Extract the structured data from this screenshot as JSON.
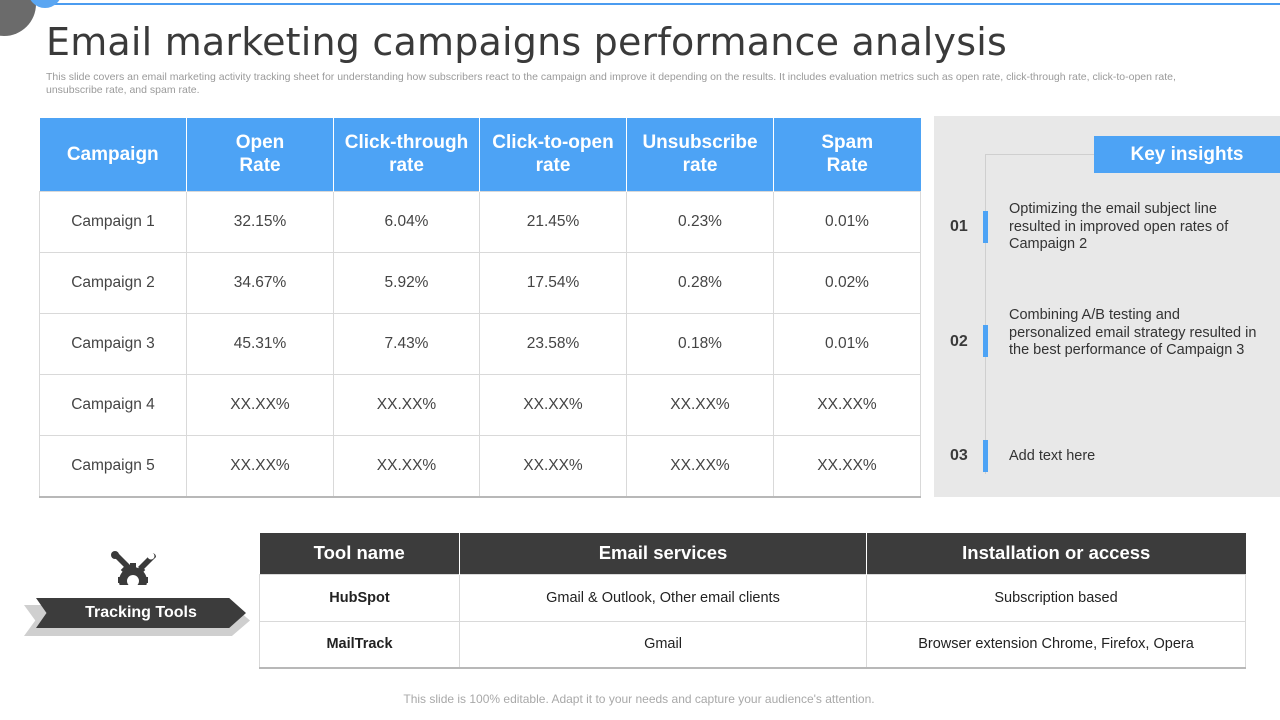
{
  "title": "Email marketing campaigns performance analysis",
  "subtitle": "This slide covers an email marketing activity tracking sheet for understanding how subscribers react to the campaign and improve it depending on the results. It includes evaluation metrics such as open rate, click-through rate, click-to-open rate, unsubscribe rate, and spam rate.",
  "campaign_table": {
    "headers": [
      "Campaign",
      "Open Rate",
      "Click-through rate",
      "Click-to-open rate",
      "Unsubscribe rate",
      "Spam Rate"
    ],
    "rows": [
      [
        "Campaign 1",
        "32.15%",
        "6.04%",
        "21.45%",
        "0.23%",
        "0.01%"
      ],
      [
        "Campaign 2",
        "34.67%",
        "5.92%",
        "17.54%",
        "0.28%",
        "0.02%"
      ],
      [
        "Campaign 3",
        "45.31%",
        "7.43%",
        "23.58%",
        "0.18%",
        "0.01%"
      ],
      [
        "Campaign 4",
        "XX.XX%",
        "XX.XX%",
        "XX.XX%",
        "XX.XX%",
        "XX.XX%"
      ],
      [
        "Campaign 5",
        "XX.XX%",
        "XX.XX%",
        "XX.XX%",
        "XX.XX%",
        "XX.XX%"
      ]
    ]
  },
  "key_insights": {
    "title": "Key insights",
    "items": [
      {
        "number": "01",
        "text": "Optimizing the email subject line resulted in improved open rates of Campaign 2"
      },
      {
        "number": "02",
        "text": "Combining A/B testing and personalized email strategy resulted in the best performance of Campaign 3"
      },
      {
        "number": "03",
        "text": "Add text here"
      }
    ]
  },
  "tracking": {
    "label": "Tracking Tools",
    "icon": "tools-gear-icon"
  },
  "tools_table": {
    "headers": [
      "Tool name",
      "Email services",
      "Installation or access"
    ],
    "rows": [
      [
        "HubSpot",
        "Gmail & Outlook, Other email clients",
        "Subscription based"
      ],
      [
        "MailTrack",
        "Gmail",
        "Browser extension Chrome, Firefox, Opera"
      ]
    ]
  },
  "footer": "This slide is 100% editable. Adapt it to your needs and capture your audience's attention.",
  "colors": {
    "accent_blue": "#4da3f5",
    "dark_grey": "#3c3c3c",
    "panel_grey": "#e8e8e8"
  }
}
